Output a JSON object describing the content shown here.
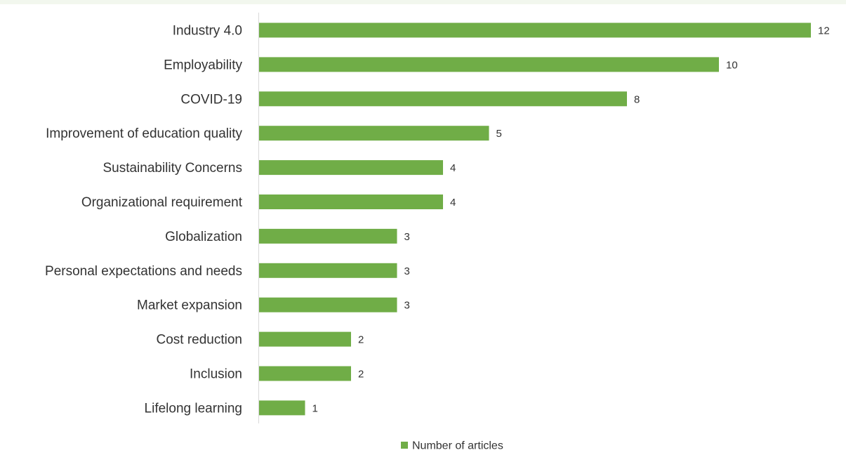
{
  "chart_data": {
    "type": "bar",
    "orientation": "horizontal",
    "categories": [
      "Industry 4.0",
      "Employability",
      "COVID-19",
      "Improvement of education quality",
      "Sustainability Concerns",
      "Organizational requirement",
      "Globalization",
      "Personal expectations and needs",
      "Market expansion",
      "Cost reduction",
      "Inclusion",
      "Lifelong learning"
    ],
    "series": [
      {
        "name": "Number of articles",
        "values": [
          12,
          10,
          8,
          5,
          4,
          4,
          3,
          3,
          3,
          2,
          2,
          1
        ]
      }
    ],
    "xlim": [
      0,
      12
    ],
    "grid": false,
    "data_labels": true,
    "legend_position": "bottom",
    "colors": {
      "bar": "#70ad47",
      "axis": "#d9d9d9",
      "text": "#333333"
    }
  }
}
